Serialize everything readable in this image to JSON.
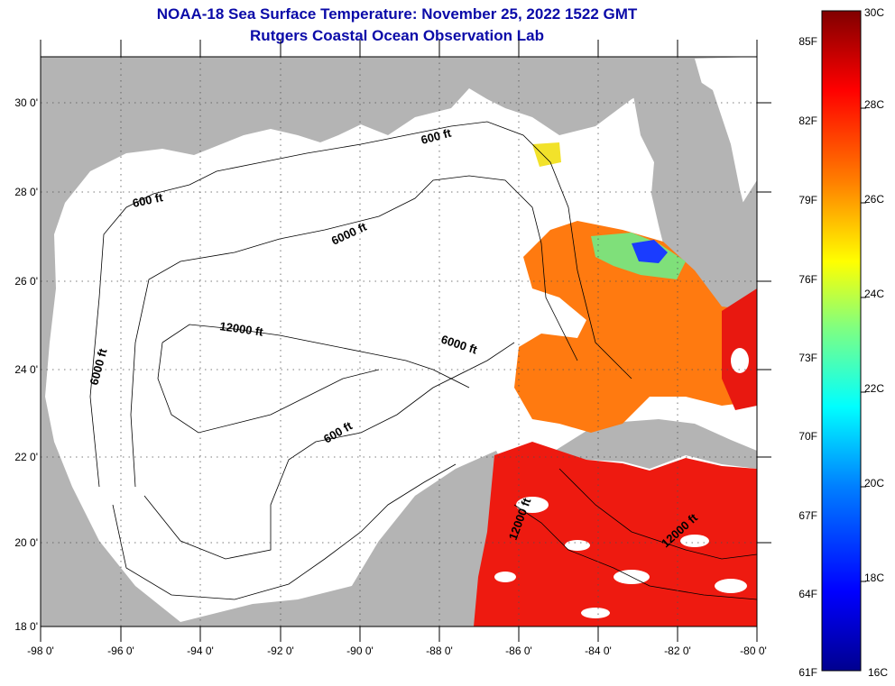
{
  "title": "NOAA-18 Sea Surface Temperature:  November 25, 2022 1522 GMT",
  "subtitle": "Rutgers Coastal Ocean Observation Lab",
  "lat_labels": [
    "30 0'",
    "28 0'",
    "26 0'",
    "24 0'",
    "22 0'",
    "20 0'",
    "18 0'"
  ],
  "lon_labels": [
    "-98 0'",
    "-96 0'",
    "-94 0'",
    "-92 0'",
    "-90 0'",
    "-88 0'",
    "-86 0'",
    "-84 0'",
    "-82 0'",
    "-80 0'"
  ],
  "contour_labels": [
    "600 ft",
    "6000 ft",
    "600 ft",
    "6000 ft",
    "12000 ft",
    "6000 ft",
    "600 ft",
    "12000 ft",
    "12000 ft"
  ],
  "colorbar": {
    "fahrenheit_labels": [
      "85F",
      "82F",
      "79F",
      "76F",
      "73F",
      "70F",
      "67F",
      "64F",
      "61F"
    ],
    "celsius_labels": [
      "30C",
      "28C",
      "26C",
      "24C",
      "22C",
      "20C",
      "18C",
      "16C"
    ],
    "range_c": [
      16,
      30
    ],
    "colors": [
      "#00008f",
      "#0000ff",
      "#0080ff",
      "#00ffff",
      "#80ff80",
      "#ffff00",
      "#ff8000",
      "#ff0000",
      "#800000"
    ]
  },
  "colors": {
    "land": "#b4b4b4",
    "ocean_no_data": "#ffffff",
    "title": "#0a0aa8"
  }
}
